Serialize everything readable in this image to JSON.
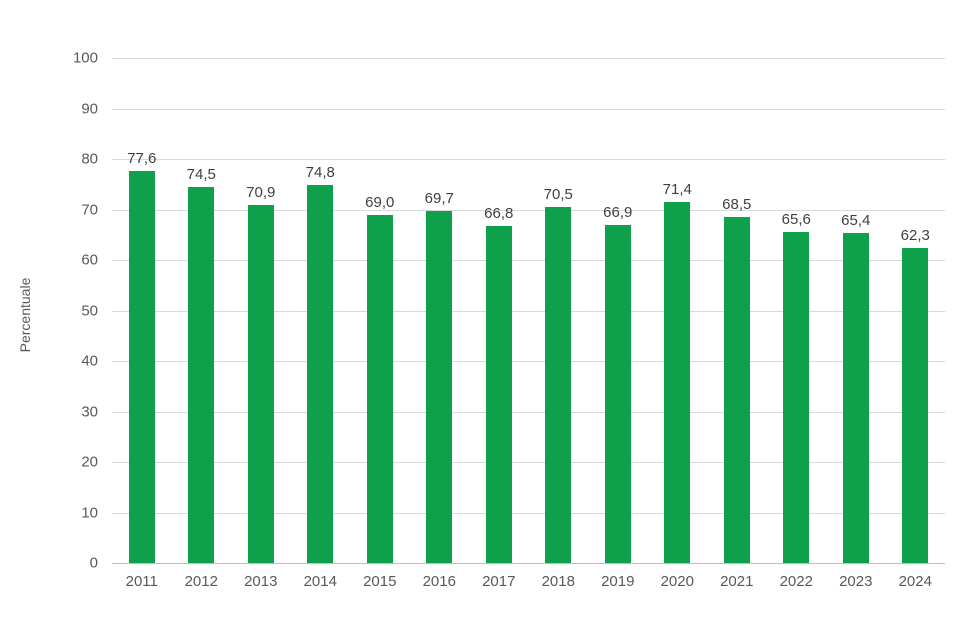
{
  "chart_data": {
    "type": "bar",
    "title": "",
    "categories": [
      "2011",
      "2012",
      "2013",
      "2014",
      "2015",
      "2016",
      "2017",
      "2018",
      "2019",
      "2020",
      "2021",
      "2022",
      "2023",
      "2024"
    ],
    "values": [
      77.6,
      74.5,
      70.9,
      74.8,
      69.0,
      69.7,
      66.8,
      70.5,
      66.9,
      71.4,
      68.5,
      65.6,
      65.4,
      62.3
    ],
    "value_labels": [
      "77,6",
      "74,5",
      "70,9",
      "74,8",
      "69,0",
      "69,7",
      "66,8",
      "70,5",
      "66,9",
      "71,4",
      "68,5",
      "65,6",
      "65,4",
      "62,3"
    ],
    "xlabel": "",
    "ylabel": "Percentuale",
    "ylim": [
      0,
      100
    ],
    "ytick_step": 10,
    "grid": true,
    "legend": false,
    "bar_color": "#0fa04c",
    "data_label_color": "#404040",
    "tick_label_color": "#595959",
    "gridline_color": "#d9d9d9",
    "axisline_color": "#bfbfbf",
    "background_color": "#ffffff"
  }
}
